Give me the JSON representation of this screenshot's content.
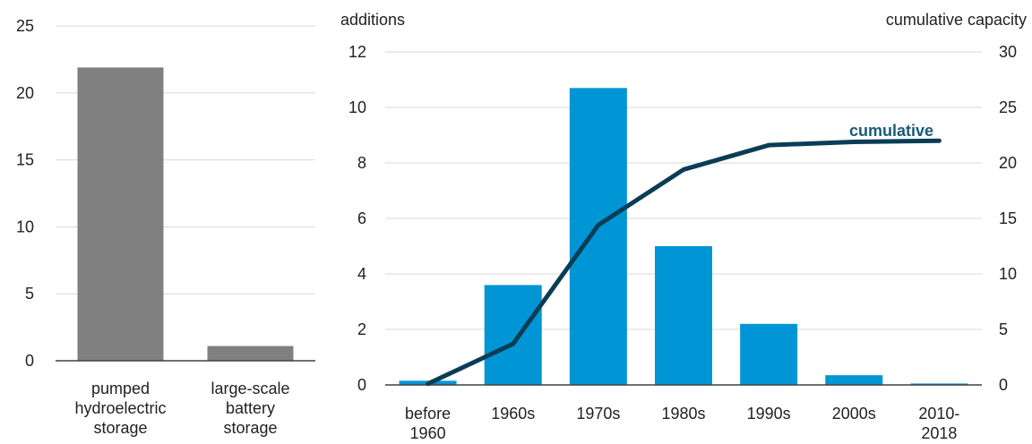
{
  "chart_data": [
    {
      "type": "bar",
      "categories": [
        [
          "pumped",
          "hydroelectric",
          "storage"
        ],
        [
          "large-scale",
          "battery",
          "storage"
        ]
      ],
      "values": [
        21.9,
        1.1
      ],
      "ylim": [
        0,
        25
      ],
      "yticks": [
        0,
        5,
        10,
        15,
        20,
        25
      ],
      "bar_color": "#808080",
      "grid": true
    },
    {
      "type": "bar+line",
      "categories": [
        [
          "before",
          "1960"
        ],
        [
          "1960s"
        ],
        [
          "1970s"
        ],
        [
          "1980s"
        ],
        [
          "1990s"
        ],
        [
          "2000s"
        ],
        [
          "2010-",
          "2018"
        ]
      ],
      "left_axis_title": "additions",
      "right_axis_title": "cumulative capacity",
      "ylim_left": [
        0,
        12
      ],
      "yticks_left": [
        0,
        2,
        4,
        6,
        8,
        10,
        12
      ],
      "ylim_right": [
        0,
        30
      ],
      "yticks_right": [
        0,
        5,
        10,
        15,
        20,
        25,
        30
      ],
      "series": [
        {
          "values": [
            0.15,
            3.6,
            10.7,
            5.0,
            2.2,
            0.35,
            0.05
          ],
          "axis": "left",
          "color": "#0096d6"
        },
        {
          "name": "cumulative",
          "values": [
            0.1,
            3.7,
            14.4,
            19.4,
            21.6,
            21.9,
            22.0
          ],
          "axis": "right",
          "color": "#0a3d55"
        }
      ],
      "grid": true
    }
  ]
}
